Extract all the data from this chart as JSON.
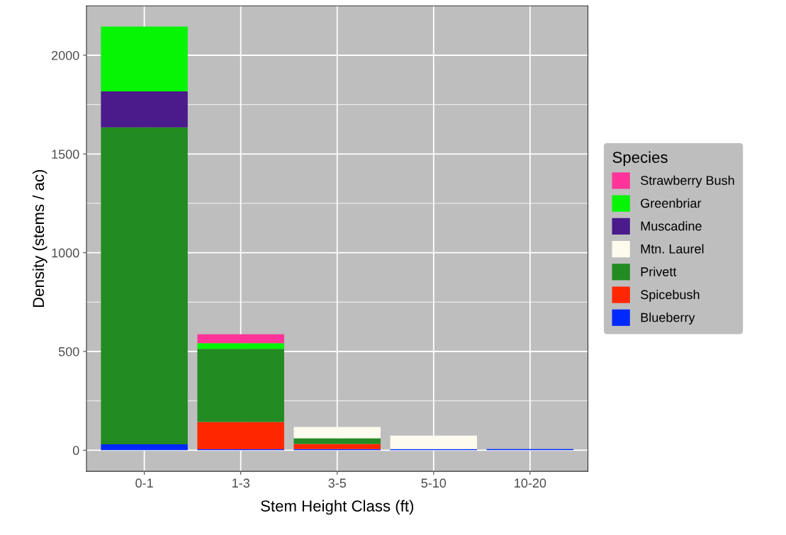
{
  "chart_data": {
    "type": "bar",
    "stacked": true,
    "xlabel": "Stem Height Class (ft)",
    "ylabel": "Density (stems / ac)",
    "legend_title": "Species",
    "legend": "right",
    "grid": true,
    "categories": [
      "0-1",
      "1-3",
      "3-5",
      "5-10",
      "10-20"
    ],
    "ylim": [
      -107,
      2250
    ],
    "yticks": [
      0,
      500,
      1000,
      1500,
      2000
    ],
    "series": [
      {
        "name": "Blueberry",
        "color": "#0029ff",
        "values": [
          30,
          5,
          6,
          6,
          6
        ]
      },
      {
        "name": "Spicebush",
        "color": "#ff2600",
        "values": [
          null,
          138,
          26,
          null,
          null
        ]
      },
      {
        "name": "Privett",
        "color": "#228b22",
        "values": [
          1605,
          370,
          28,
          null,
          null
        ]
      },
      {
        "name": "Mtn. Laurel",
        "color": "#fdfaee",
        "values": [
          null,
          null,
          58,
          68,
          null
        ]
      },
      {
        "name": "Muscadine",
        "color": "#4b1a8b",
        "values": [
          182,
          null,
          null,
          null,
          null
        ]
      },
      {
        "name": "Greenbriar",
        "color": "#05f505",
        "values": [
          328,
          29,
          null,
          null,
          null
        ]
      },
      {
        "name": "Strawberry Bush",
        "color": "#ff3399",
        "values": [
          null,
          45,
          null,
          null,
          null
        ]
      }
    ]
  }
}
